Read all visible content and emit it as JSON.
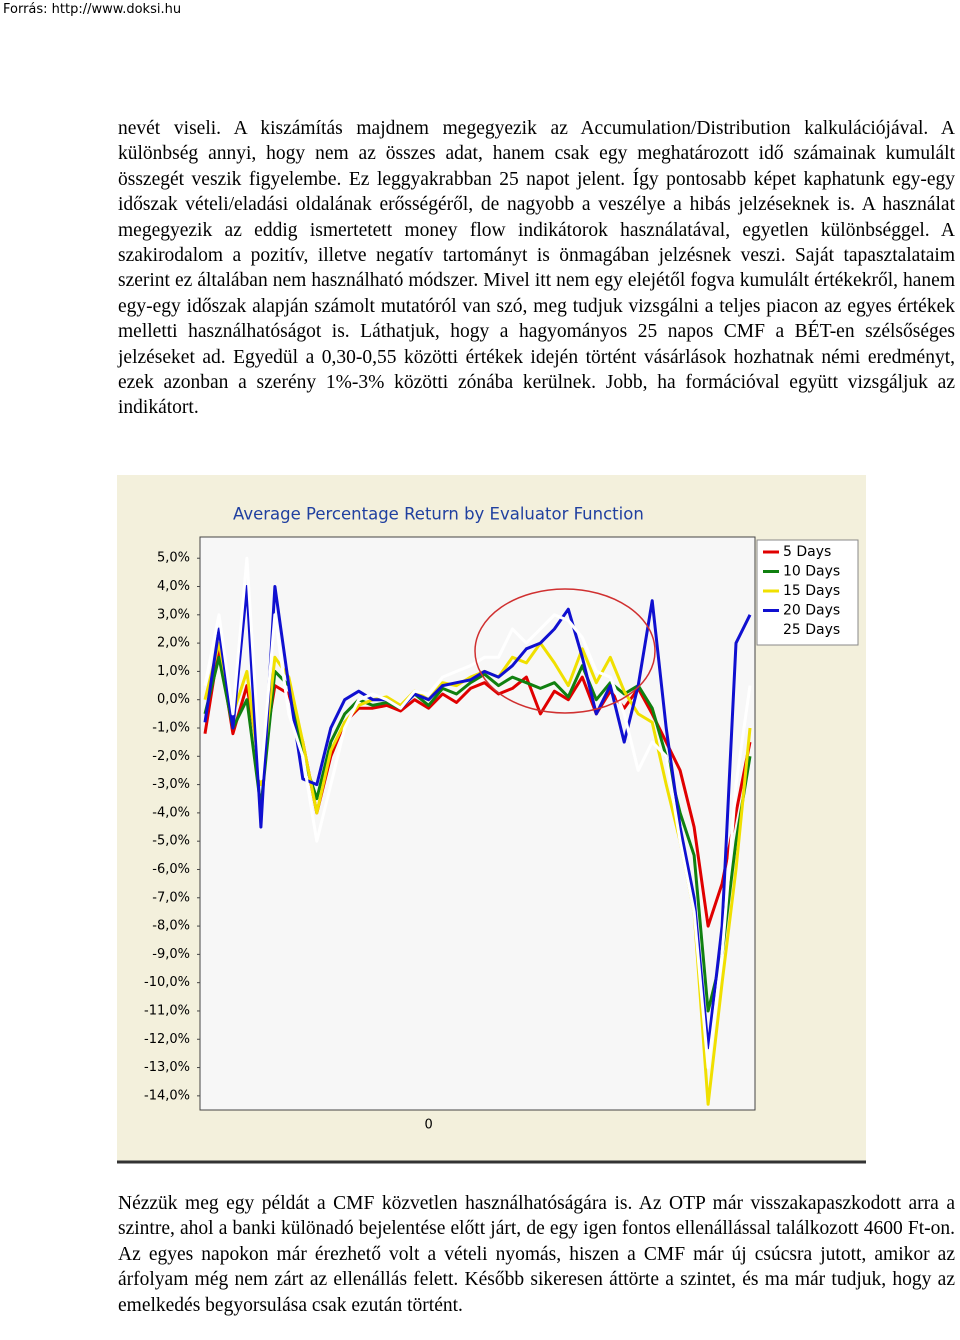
{
  "header": {
    "source": "Forrás: http://www.doksi.hu"
  },
  "paragraphs": [
    "nevét viseli. A kiszámítás majdnem megegyezik az Accumulation/Distribution kalkulációjával. A különbség annyi, hogy nem az összes adat, hanem csak egy meghatározott idő számainak kumulált összegét veszik figyelembe. Ez leggyakrabban 25 napot jelent. Így pontosabb képet kaphatunk egy-egy időszak vételi/eladási oldalának erősségéről, de nagyobb a veszélye a hibás jelzéseknek is. A használat megegyezik az eddig ismertetett money flow indikátorok használatával, egyetlen különbséggel. A szakirodalom a pozitív, illetve negatív tartományt is önmagában jelzésnek veszi. Saját tapasztalataim szerint ez általában nem használható módszer. Mivel itt nem egy elejétől fogva kumulált értékekről, hanem egy-egy időszak alapján számolt mutatóról van szó, meg tudjuk vizsgálni a teljes piacon az egyes értékek melletti használhatóságot is. Láthatjuk, hogy a hagyományos 25 napos CMF a BÉT-en szélsőséges jelzéseket ad. Egyedül a 0,30-0,55 közötti értékek idején történt vásárlások hozhatnak némi eredményt, ezek azonban a szerény 1%-3% közötti zónába kerülnek. Jobb, ha formációval együtt vizsgáljuk az indikátort.",
    "Nézzük meg egy példát a CMF közvetlen használhatóságára is. Az OTP már visszakapaszkodott arra a szintre, ahol a banki különadó bejelentése előtt járt, de egy igen fontos ellenállással találkozott 4600 Ft-on. Az egyes napokon már érezhető volt a vételi nyomás, hiszen a CMF már új csúcsra jutott, amikor az árfolyam még nem zárt az ellenállás felett. Később sikeresen áttörte a szintet, és ma már tudjuk, hogy az emelkedés begyorsulása csak ezután történt."
  ],
  "chart_data": {
    "type": "line",
    "title": "Average Percentage Return by Evaluator Function",
    "categories": [
      null,
      null,
      null,
      null,
      null,
      null,
      null,
      null,
      null,
      null,
      null,
      null,
      null,
      null,
      null,
      null,
      "0",
      null,
      null,
      null,
      null,
      null,
      null,
      null,
      null,
      null,
      null,
      null,
      null,
      null,
      null,
      null,
      null,
      null,
      null,
      null,
      null,
      null,
      null,
      null
    ],
    "series": [
      {
        "name": "5 Days",
        "color": "#e00000",
        "values": [
          -1.2,
          1.9,
          -1.2,
          0.5,
          -2.5,
          0.5,
          0.2,
          -1.5,
          -4.0,
          -2.0,
          -0.8,
          -0.3,
          -0.3,
          -0.2,
          -0.4,
          0.0,
          -0.3,
          0.2,
          -0.1,
          0.4,
          0.6,
          0.2,
          0.4,
          0.8,
          -0.5,
          0.3,
          0.0,
          0.8,
          -0.5,
          0.3,
          -0.3,
          0.4,
          -0.5,
          -1.5,
          -2.5,
          -4.5,
          -8.0,
          -6.5,
          -4.0,
          -1.5
        ]
      },
      {
        "name": "10 Days",
        "color": "#108010",
        "values": [
          -0.5,
          1.5,
          -1.0,
          0.0,
          -3.8,
          1.0,
          0.5,
          -2.0,
          -3.5,
          -1.5,
          -0.5,
          0.0,
          -0.2,
          -0.1,
          -0.3,
          0.2,
          -0.2,
          0.4,
          0.2,
          0.6,
          0.9,
          0.5,
          0.8,
          0.6,
          0.4,
          0.6,
          0.1,
          1.2,
          0.0,
          0.6,
          0.2,
          0.5,
          -0.3,
          -2.0,
          -4.0,
          -5.5,
          -11.0,
          -9.0,
          -5.0,
          -2.0
        ]
      },
      {
        "name": "15 Days",
        "color": "#f0e000",
        "values": [
          0.0,
          2.0,
          -0.5,
          1.0,
          -3.0,
          1.5,
          0.8,
          -1.5,
          -4.0,
          -1.8,
          -0.8,
          -0.2,
          0.0,
          0.1,
          -0.2,
          0.3,
          0.0,
          0.6,
          0.5,
          0.8,
          1.0,
          0.8,
          1.5,
          1.3,
          2.0,
          1.3,
          0.5,
          1.8,
          0.6,
          1.5,
          0.3,
          -0.5,
          -0.8,
          -3.0,
          -5.0,
          -7.5,
          -14.3,
          -10.0,
          -6.0,
          -1.0
        ]
      },
      {
        "name": "20 Days",
        "color": "#1010d0",
        "values": [
          -0.8,
          2.5,
          -1.0,
          4.0,
          -4.5,
          4.0,
          0.5,
          -2.8,
          -3.0,
          -1.0,
          0.0,
          0.3,
          0.0,
          0.0,
          -0.3,
          0.2,
          0.0,
          0.5,
          0.6,
          0.7,
          1.0,
          0.8,
          1.2,
          1.8,
          2.0,
          2.5,
          3.2,
          1.5,
          -0.5,
          0.5,
          -1.5,
          0.5,
          3.5,
          -1.0,
          -4.5,
          -7.0,
          -12.3,
          -8.0,
          2.0,
          3.0
        ]
      },
      {
        "name": "25 Days",
        "color": "#ffffff",
        "values": [
          0.5,
          3.0,
          -0.5,
          5.0,
          -2.8,
          3.0,
          -0.5,
          -2.0,
          -5.0,
          -3.0,
          -1.0,
          0.0,
          0.2,
          0.0,
          -0.3,
          0.3,
          0.2,
          0.8,
          1.0,
          1.2,
          1.5,
          1.5,
          2.5,
          2.0,
          2.5,
          3.0,
          2.8,
          2.2,
          1.0,
          0.8,
          -0.5,
          -2.5,
          -1.5,
          -2.0,
          -5.0,
          -7.5,
          -13.0,
          -9.0,
          -3.0,
          0.5
        ]
      }
    ],
    "ylim": [
      -14.5,
      5.75
    ],
    "yticks": [
      {
        "value": 5,
        "label": "5,0%"
      },
      {
        "value": 4,
        "label": "4,0%"
      },
      {
        "value": 3,
        "label": "3,0%"
      },
      {
        "value": 2,
        "label": "2,0%"
      },
      {
        "value": 1,
        "label": "1,0%"
      },
      {
        "value": 0,
        "label": "0,0%"
      },
      {
        "value": -1,
        "label": "-1,0%"
      },
      {
        "value": -2,
        "label": "-2,0%"
      },
      {
        "value": -3,
        "label": "-3,0%"
      },
      {
        "value": -4,
        "label": "-4,0%"
      },
      {
        "value": -5,
        "label": "-5,0%"
      },
      {
        "value": -6,
        "label": "-6,0%"
      },
      {
        "value": -7,
        "label": "-7,0%"
      },
      {
        "value": -8,
        "label": "-8,0%"
      },
      {
        "value": -9,
        "label": "-9,0%"
      },
      {
        "value": -10,
        "label": "-10,0%"
      },
      {
        "value": -11,
        "label": "-11,0%"
      },
      {
        "value": -12,
        "label": "-12,0%"
      },
      {
        "value": -13,
        "label": "-13,0%"
      },
      {
        "value": -14,
        "label": "-14,0%"
      }
    ],
    "grid": false,
    "legend": "upper right"
  }
}
